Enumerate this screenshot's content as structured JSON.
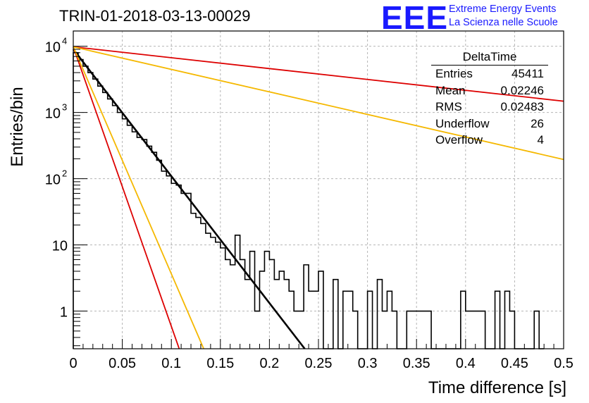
{
  "header": {
    "title": "TRIN-01-2018-03-13-00029",
    "logo_text": "EEE",
    "logo_line1": "Extreme Energy Events",
    "logo_line2": "La Scienza nelle Scuole"
  },
  "stats": {
    "name": "DeltaTime",
    "rows": [
      {
        "label": "Entries",
        "value": "45411"
      },
      {
        "label": "Mean",
        "value": "0.02246"
      },
      {
        "label": "RMS",
        "value": "0.02483"
      },
      {
        "label": "Underflow",
        "value": "26"
      },
      {
        "label": "Overflow",
        "value": "4"
      }
    ]
  },
  "chart_data": {
    "type": "histogram",
    "title": "TRIN-01-2018-03-13-00029",
    "xlabel": "Time difference [s]",
    "ylabel": "Entries/bin",
    "xlim": [
      0,
      0.5
    ],
    "ylim": [
      0.27,
      17000
    ],
    "yscale": "log",
    "grid": true,
    "bin_width": 0.005,
    "x_ticks": [
      "0",
      "0.05",
      "0.1",
      "0.15",
      "0.2",
      "0.25",
      "0.3",
      "0.35",
      "0.4",
      "0.45",
      "0.5"
    ],
    "y_ticks": [
      {
        "value": 1,
        "label": "1"
      },
      {
        "value": 10,
        "label": "10"
      },
      {
        "value": 100,
        "label": "10",
        "exp": "2"
      },
      {
        "value": 1000,
        "label": "10",
        "exp": "3"
      },
      {
        "value": 10000,
        "label": "10",
        "exp": "4"
      }
    ],
    "histogram_values": [
      8000,
      6300,
      5000,
      4000,
      3200,
      2500,
      2000,
      1600,
      1270,
      1000,
      800,
      640,
      510,
      420,
      390,
      310,
      250,
      190,
      130,
      110,
      85,
      80,
      60,
      60,
      30,
      26,
      21,
      15,
      13,
      11,
      9,
      6,
      5,
      14,
      6,
      3,
      8,
      1,
      4,
      8,
      6,
      3,
      4,
      3,
      2,
      1,
      1,
      5,
      2,
      2,
      4,
      0,
      0,
      3,
      0,
      2,
      2,
      1,
      0,
      0,
      2,
      0,
      3,
      1,
      2,
      1,
      0,
      0,
      1,
      1,
      1,
      1,
      1,
      0,
      0,
      0,
      0,
      0,
      0,
      2,
      1,
      1,
      1,
      1,
      0,
      0,
      2,
      0,
      2,
      1,
      0,
      0,
      0,
      0,
      1,
      0
    ],
    "series": [
      {
        "type": "fit",
        "color": "#000000",
        "x": [
          0,
          0.236
        ],
        "y": [
          9000,
          0.27
        ]
      },
      {
        "type": "line",
        "color": "#dd0000",
        "x": [
          0,
          0.5
        ],
        "y": [
          9800,
          1480
        ]
      },
      {
        "type": "line",
        "color": "#f5b800",
        "x": [
          0,
          0.5
        ],
        "y": [
          9800,
          195
        ]
      },
      {
        "type": "line",
        "color": "#dd0000",
        "x": [
          0,
          0.108
        ],
        "y": [
          9800,
          0.27
        ]
      },
      {
        "type": "line",
        "color": "#f5b800",
        "x": [
          0,
          0.133
        ],
        "y": [
          9800,
          0.27
        ]
      }
    ]
  }
}
